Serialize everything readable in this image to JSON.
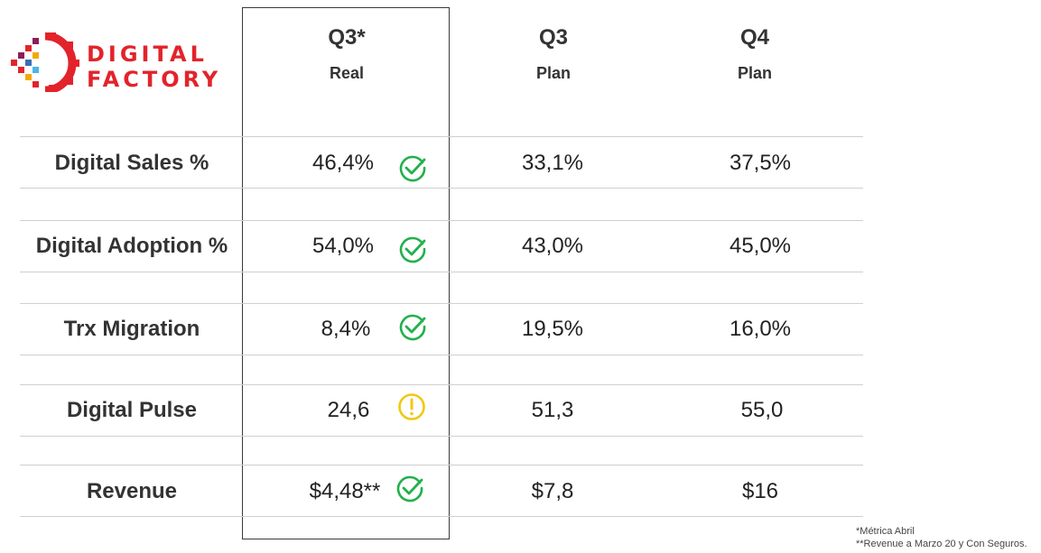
{
  "logo": {
    "line1": "DIGITAL",
    "line2": "FACTORY"
  },
  "columns": [
    {
      "q": "Q3*",
      "sub": "Real"
    },
    {
      "q": "Q3",
      "sub": "Plan"
    },
    {
      "q": "Q4",
      "sub": "Plan"
    }
  ],
  "rows": [
    {
      "label": "Digital Sales %",
      "real": "46,4%",
      "status": "check-icon",
      "q3plan": "33,1%",
      "q4plan": "37,5%"
    },
    {
      "label": "Digital Adoption %",
      "real": "54,0%",
      "status": "check-icon",
      "q3plan": "43,0%",
      "q4plan": "45,0%"
    },
    {
      "label": "Trx Migration",
      "real": "8,4%",
      "status": "check-icon",
      "q3plan": "19,5%",
      "q4plan": "16,0%"
    },
    {
      "label": "Digital Pulse",
      "real": "24,6",
      "status": "warning-icon",
      "q3plan": "51,3",
      "q4plan": "55,0"
    },
    {
      "label": "Revenue",
      "real": "$4,48**",
      "status": "check-icon",
      "q3plan": "$7,8",
      "q4plan": "$16"
    }
  ],
  "footnotes": [
    "*Métrica Abril",
    "**Revenue a Marzo 20 y Con Seguros."
  ],
  "colors": {
    "brand": "#e3232b",
    "check": "#22b14c",
    "warning": "#f2c811"
  }
}
